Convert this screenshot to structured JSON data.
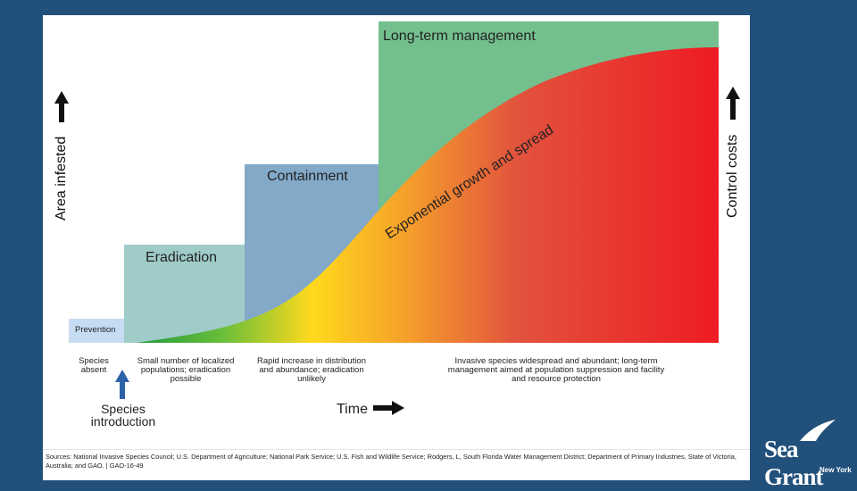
{
  "stages": {
    "prevention": "Prevention",
    "eradication": "Eradication",
    "containment": "Containment",
    "long_term": "Long-term management"
  },
  "curve_label": "Exponential growth and spread",
  "axes": {
    "left": "Area infested",
    "right": "Control costs",
    "time": "Time"
  },
  "captions": {
    "species_absent": "Species\nabsent",
    "small_populations": "Small number of localized\npopulations; eradication\npossible",
    "rapid_increase": "Rapid increase in distribution\nand abundance; eradication\nunlikely",
    "widespread": "Invasive species widespread and abundant; long-term\nmanagement aimed at population suppression and facility\nand resource protection",
    "species_introduction": "Species\nintroduction"
  },
  "sources": "Sources: National Invasive Species Council; U.S. Department of Agriculture; National Park Service; U.S. Fish and Wildlife Service; Rodgers, L, South Florida Water Management District; Department of Primary Industries, State of Victoria, Australia; and GAO.  |  GAO-16-49",
  "logo": {
    "name": "Sea Grant",
    "sub": "New York"
  },
  "colors": {
    "prevention": "#c6dcf2",
    "eradication": "#9fcbc9",
    "containment": "#83a9c9",
    "long_term": "#73c08e",
    "background": "#21507a"
  }
}
